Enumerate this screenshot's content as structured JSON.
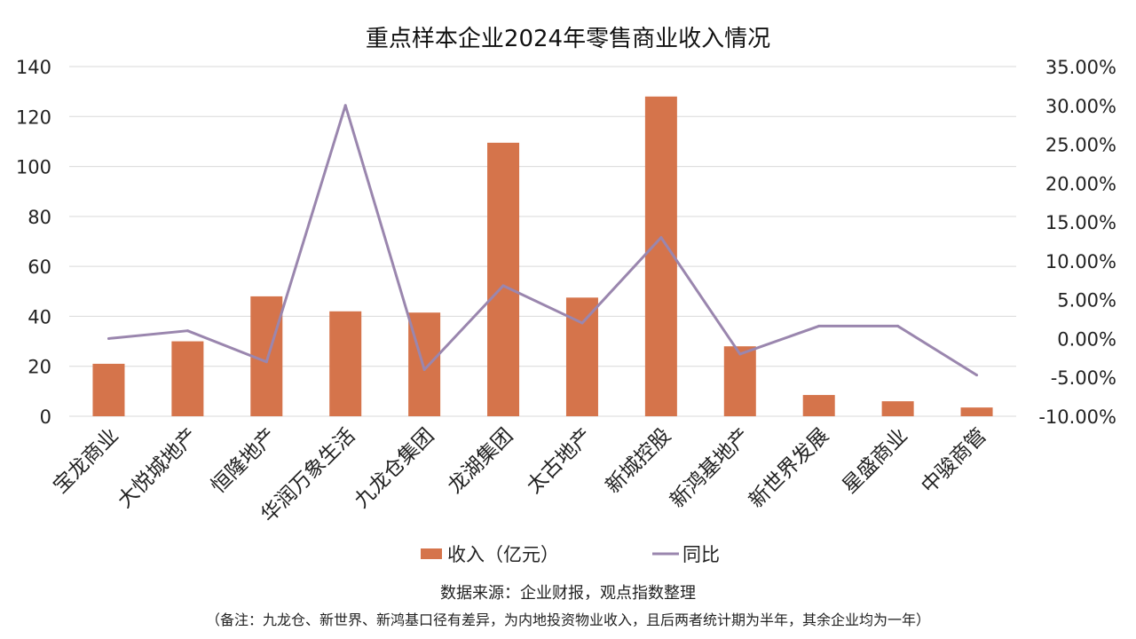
{
  "chart_data": {
    "type": "bar",
    "title": "重点样本企业2024年零售商业收入情况",
    "categories": [
      "宝龙商业",
      "大悦城地产",
      "恒隆地产",
      "华润万象生活",
      "九龙仓集团",
      "龙湖集团",
      "太古地产",
      "新城控股",
      "新鸿基地产",
      "新世界发展",
      "星盛商业",
      "中骏商管"
    ],
    "series": [
      {
        "name": "收入（亿元）",
        "type": "bar",
        "axis": "left",
        "color": "#D5744B",
        "values": [
          21,
          30,
          48,
          42,
          41.5,
          109.5,
          47.5,
          128,
          28,
          8.5,
          6,
          3.5
        ]
      },
      {
        "name": "同比",
        "type": "line",
        "axis": "right",
        "color": "#9A86AE",
        "values": [
          0.0,
          0.01,
          -0.03,
          0.3,
          -0.04,
          0.068,
          0.02,
          0.13,
          -0.02,
          0.016,
          0.016,
          -0.047
        ]
      }
    ],
    "y_left": {
      "min": 0,
      "max": 140,
      "ticks": [
        "0",
        "20",
        "40",
        "60",
        "80",
        "100",
        "120",
        "140"
      ]
    },
    "y_right": {
      "min": -0.1,
      "max": 0.35,
      "ticks": [
        "-10.00%",
        "-5.00%",
        "0.00%",
        "5.00%",
        "10.00%",
        "15.00%",
        "20.00%",
        "25.00%",
        "30.00%",
        "35.00%"
      ]
    },
    "grid": true,
    "legend_position": "bottom"
  },
  "notes": {
    "source": "数据来源：企业财报，观点指数整理",
    "remark": "（备注：九龙仓、新世界、新鸿基口径有差异，为内地投资物业收入，且后两者统计期为半年，其余企业均为一年）"
  }
}
